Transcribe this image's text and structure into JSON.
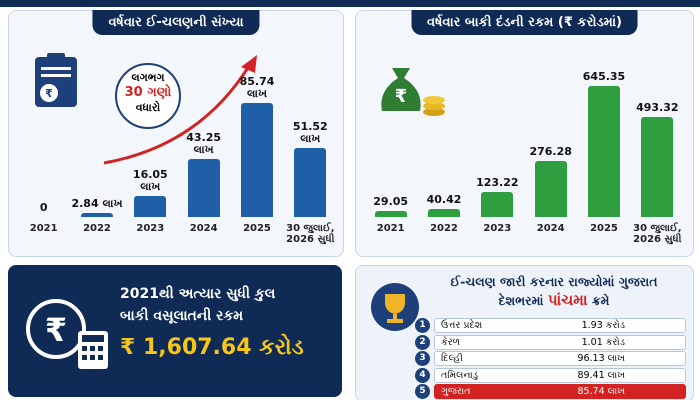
{
  "chart_data": [
    {
      "type": "bar",
      "title": "વર્ષવાર ઈ-ચલણની સંખ્યા",
      "categories": [
        "2021",
        "2022",
        "2023",
        "2024",
        "2025",
        "30 જુલાઈ, 2026 સુધી"
      ],
      "values": [
        0,
        2.84,
        16.05,
        43.25,
        85.74,
        51.52
      ],
      "value_labels": [
        "0",
        "2.84 લાખ",
        "16.05 લાખ",
        "43.25 લાખ",
        "85.74 લાખ",
        "51.52 લાખ"
      ],
      "color": "#1f5fa8",
      "ylim": [
        0,
        90
      ],
      "annotation": [
        "લગભગ",
        "30 ગણો",
        "વધારો"
      ]
    },
    {
      "type": "bar",
      "title": "વર્ષવાર બાકી દંડની રકમ (₹ કરોડમાં)",
      "categories": [
        "2021",
        "2022",
        "2023",
        "2024",
        "2025",
        "30 જુલાઈ, 2026 સુધી"
      ],
      "values": [
        29.05,
        40.42,
        123.22,
        276.28,
        645.35,
        493.32
      ],
      "color": "#2e9e3e",
      "ylim": [
        0,
        700
      ]
    }
  ],
  "summary": {
    "lines": [
      "2021થી અત્યાર સુધી કુલ",
      "બાકી વસૂલાતની રકમ"
    ],
    "amount": "₹ 1,607.64 કરોડ"
  },
  "ranking": {
    "title": "ઈ-ચલણ જારી કરનાર રાજ્યોમાં ગુજરાત",
    "subtitle": [
      "દેશભરમાં ",
      "પાંચમા",
      " ક્રમે"
    ],
    "rows": [
      [
        "1",
        "ઉત્તર પ્રદેશ",
        "1.93 કરોડ"
      ],
      [
        "2",
        "કેરળ",
        "1.01 કરોડ"
      ],
      [
        "3",
        "દિલ્હી",
        "96.13 લાખ"
      ],
      [
        "4",
        "તમિલનાડુ",
        "89.41 લાખ"
      ],
      [
        "5",
        "ગુજરાત",
        "85.74 લાખ"
      ]
    ]
  }
}
